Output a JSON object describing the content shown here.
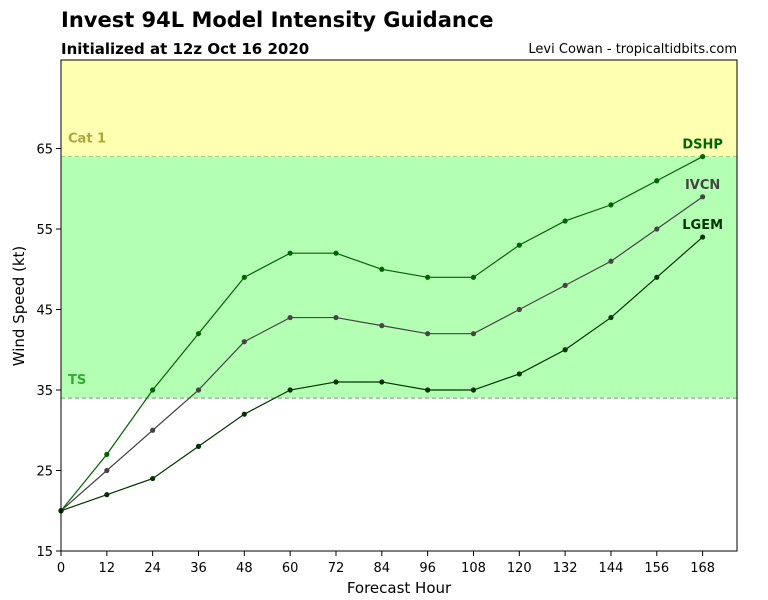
{
  "header": {
    "title": "Invest 94L Model Intensity Guidance",
    "subtitle": "Initialized at 12z Oct 16 2020",
    "credit": "Levi Cowan - tropicaltidbits.com"
  },
  "chart_data": {
    "type": "line",
    "title": "Invest 94L Model Intensity Guidance",
    "subtitle": "Initialized at 12z Oct 16 2020",
    "xlabel": "Forecast Hour",
    "ylabel": "Wind Speed (kt)",
    "xlim": [
      0,
      177
    ],
    "ylim": [
      15,
      76
    ],
    "xticks": [
      0,
      12,
      24,
      36,
      48,
      60,
      72,
      84,
      96,
      108,
      120,
      132,
      144,
      156,
      168
    ],
    "yticks": [
      15,
      25,
      35,
      45,
      55,
      65
    ],
    "grid": false,
    "bands": [
      {
        "label": "Cat 1",
        "from": 64,
        "to": 76,
        "color": "#ffffb2",
        "label_color": "#a8a83c"
      },
      {
        "label": "TS",
        "from": 34,
        "to": 64,
        "color": "#b3ffb3",
        "label_color": "#33aa33"
      }
    ],
    "threshold_color": "#6aa56a",
    "x": [
      0,
      12,
      24,
      36,
      48,
      60,
      72,
      84,
      96,
      108,
      120,
      132,
      144,
      156,
      168
    ],
    "series": [
      {
        "name": "DSHP",
        "color": "#006400",
        "label_color": "#006400",
        "values": [
          20,
          27,
          35,
          42,
          49,
          52,
          52,
          50,
          49,
          49,
          53,
          56,
          58,
          61,
          64
        ]
      },
      {
        "name": "IVCN",
        "color": "#444444",
        "label_color": "#444444",
        "values": [
          20,
          25,
          30,
          35,
          41,
          44,
          44,
          43,
          42,
          42,
          45,
          48,
          51,
          55,
          59
        ]
      },
      {
        "name": "LGEM",
        "color": "#003300",
        "label_color": "#003300",
        "values": [
          20,
          22,
          24,
          28,
          32,
          35,
          36,
          36,
          35,
          35,
          37,
          40,
          44,
          49,
          54
        ]
      }
    ]
  }
}
